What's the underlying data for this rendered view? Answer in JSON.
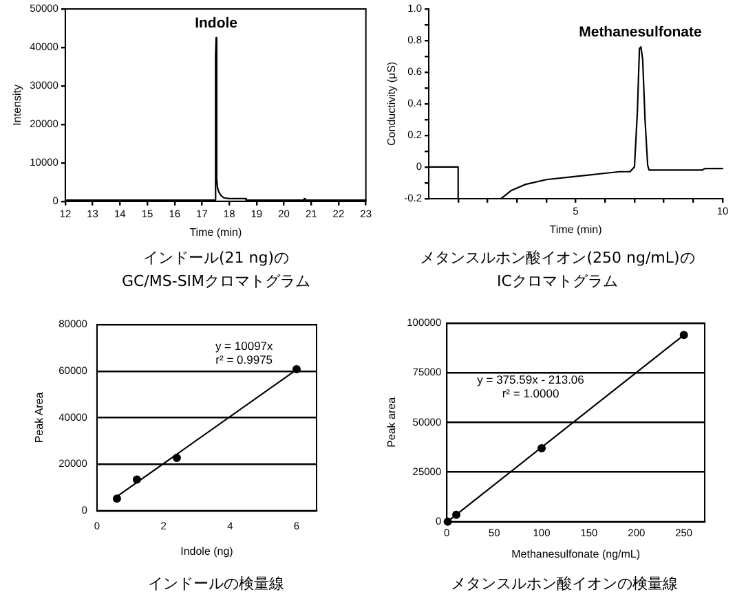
{
  "chart_data": [
    {
      "type": "line",
      "title": "インドール(21 ng)の\nGC/MS-SIMクロマトグラム",
      "xlabel": "Time (min)",
      "ylabel": "Intensity",
      "x": [
        12,
        17.48,
        17.5,
        17.52,
        17.54,
        17.57,
        17.62,
        17.7,
        17.8,
        18.0,
        18.6,
        18.62,
        20.72,
        20.75,
        20.78,
        23
      ],
      "series": [
        {
          "color": "#000000",
          "values": [
            300,
            300,
            38000,
            42500,
            6000,
            3500,
            2400,
            1500,
            900,
            700,
            700,
            300,
            300,
            700,
            300,
            300
          ]
        }
      ],
      "xlim": [
        12,
        23
      ],
      "xticks": [
        12,
        13,
        14,
        15,
        16,
        17,
        18,
        19,
        20,
        21,
        22,
        23
      ],
      "ylim": [
        0,
        50000
      ],
      "yticks": [
        0,
        10000,
        20000,
        30000,
        40000,
        50000
      ],
      "annotations": [
        {
          "text": "Indole",
          "x": 17.52,
          "y": 42500
        }
      ]
    },
    {
      "type": "line",
      "title": "メタンスルホン酸イオン(250 ng/mL)の\nICクロマトグラム",
      "xlabel": "Time (min)",
      "ylabel": "Conductivity (μS)",
      "x": [
        0,
        1.0,
        1.0,
        1.5,
        2.46,
        2.8,
        3.3,
        4.0,
        5.0,
        6.0,
        6.5,
        6.85,
        7.0,
        7.1,
        7.17,
        7.22,
        7.28,
        7.36,
        7.45,
        7.5,
        9.3,
        9.4,
        10
      ],
      "series": [
        {
          "color": "#000000",
          "values": [
            0,
            0,
            -0.2,
            null,
            -0.2,
            -0.15,
            -0.11,
            -0.08,
            -0.06,
            -0.04,
            -0.03,
            -0.03,
            0,
            0.35,
            0.75,
            0.76,
            0.68,
            0.3,
            0.01,
            -0.02,
            -0.02,
            -0.01,
            -0.01
          ]
        }
      ],
      "xlim": [
        0,
        10
      ],
      "xticks": [
        {
          "value": 1,
          "label": null
        },
        {
          "value": 2,
          "label": null
        },
        {
          "value": 3,
          "label": null
        },
        {
          "value": 4,
          "label": null
        },
        5,
        {
          "value": 6,
          "label": null
        },
        {
          "value": 7,
          "label": null
        },
        {
          "value": 8,
          "label": null
        },
        {
          "value": 9,
          "label": null
        },
        10
      ],
      "ylim": [
        -0.2,
        1
      ],
      "yticks": [
        -0.2,
        {
          "value": -0.1,
          "label": null
        },
        0,
        {
          "value": 0.1,
          "label": null
        },
        0.2,
        {
          "value": 0.3,
          "label": null
        },
        0.4,
        {
          "value": 0.5,
          "label": null
        },
        0.6,
        {
          "value": 0.7,
          "label": null
        },
        0.8,
        {
          "value": 0.9,
          "label": null
        },
        {
          "value": 1,
          "label": "1.0"
        }
      ],
      "annotations": [
        {
          "text": "Methanesulfonate",
          "x": 7.2,
          "y": 0.76
        }
      ]
    },
    {
      "type": "scatter",
      "title": "インドールの検量線",
      "xlabel": "Indole (ng)",
      "ylabel": "Peak Area",
      "marker": "circle",
      "grid": "y",
      "xlim": [
        0,
        6.6
      ],
      "xticks": [
        0,
        2,
        4,
        6
      ],
      "ylim": [
        0,
        80000
      ],
      "yticks": [
        0,
        20000,
        40000,
        60000,
        80000
      ],
      "annotations": [
        "y = 10097x",
        "r² = 0.9975"
      ],
      "series": [
        {
          "color": "#000000",
          "x": [
            0.6,
            1.2,
            2.4,
            6
          ],
          "values": [
            5200,
            13400,
            22700,
            60800
          ]
        },
        {
          "type": "line",
          "color": "#000000",
          "marker": "none",
          "x": [
            0.55,
            6
          ],
          "values": [
            5600,
            60600
          ]
        }
      ]
    },
    {
      "type": "scatter",
      "title": "メタンスルホン酸イオンの検量線",
      "xlabel": "Methanesulfonate (ng/mL)",
      "ylabel": "Peak area",
      "marker": "circle",
      "grid": "y",
      "xlim": [
        0,
        272
      ],
      "xticks": [
        0,
        50,
        100,
        150,
        200,
        250
      ],
      "ylim": [
        0,
        100000
      ],
      "yticks": [
        0,
        25000,
        50000,
        75000,
        100000
      ],
      "annotations": [
        "y = 375.59x - 213.06",
        "r² = 1.0000"
      ],
      "series": [
        {
          "color": "#000000",
          "x": [
            1,
            10,
            100,
            250
          ],
          "values": [
            0,
            3500,
            37000,
            94000
          ]
        },
        {
          "type": "line",
          "color": "#000000",
          "marker": "none",
          "x": [
            0.6,
            250
          ],
          "values": [
            0,
            94000
          ]
        }
      ]
    }
  ]
}
